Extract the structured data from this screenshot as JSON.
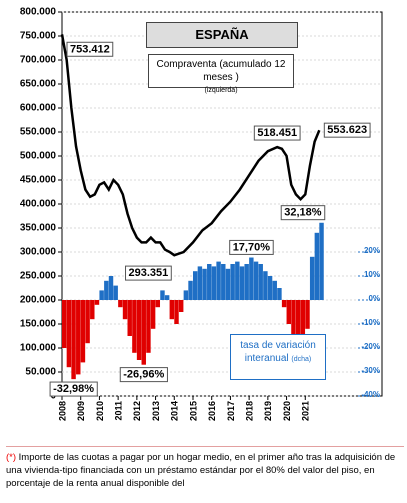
{
  "chart_data": {
    "type": "line_bar",
    "title": "ESPAÑA",
    "xlim": [
      2008,
      2025.1
    ],
    "xticks": [
      2008,
      2009,
      2010,
      2011,
      2012,
      2013,
      2014,
      2015,
      2016,
      2017,
      2018,
      2019,
      2020,
      2021
    ],
    "ylim": [
      0,
      800000
    ],
    "yticks": [
      {
        "value": 0,
        "label": "0"
      },
      {
        "value": 50000,
        "label": "50.000"
      },
      {
        "value": 100000,
        "label": "100.000"
      },
      {
        "value": 150000,
        "label": "150.000"
      },
      {
        "value": 200000,
        "label": "200.000"
      },
      {
        "value": 250000,
        "label": "250.000"
      },
      {
        "value": 300000,
        "label": "300.000"
      },
      {
        "value": 350000,
        "label": "350.000"
      },
      {
        "value": 400000,
        "label": "400.000"
      },
      {
        "value": 450000,
        "label": "450.000"
      },
      {
        "value": 500000,
        "label": "500.000"
      },
      {
        "value": 550000,
        "label": "550.000"
      },
      {
        "value": 600000,
        "label": "600.000"
      },
      {
        "value": 650000,
        "label": "650.000"
      },
      {
        "value": 700000,
        "label": "700.000"
      },
      {
        "value": 750000,
        "label": "750.000"
      },
      {
        "value": 800000,
        "label": "800.000"
      }
    ],
    "y2lim": [
      -40,
      120
    ],
    "y2ticks": [
      {
        "value": -40,
        "label": "-40%"
      },
      {
        "value": -30,
        "label": "-30%"
      },
      {
        "value": -20,
        "label": "-20%"
      },
      {
        "value": -10,
        "label": "-10%"
      },
      {
        "value": 0,
        "label": "0%"
      },
      {
        "value": 10,
        "label": "10%"
      },
      {
        "value": 20,
        "label": "20%"
      }
    ],
    "grid": true,
    "series": [
      {
        "name": "Compraventa  (acumulado 12 meses )",
        "legend_note": "(izquierda)",
        "type": "line",
        "color": "#000000",
        "x": [
          2008,
          2008.25,
          2008.5,
          2008.75,
          2009,
          2009.25,
          2009.5,
          2009.75,
          2010,
          2010.25,
          2010.5,
          2010.75,
          2011,
          2011.25,
          2011.5,
          2011.75,
          2012,
          2012.25,
          2012.5,
          2012.75,
          2013,
          2013.25,
          2013.5,
          2013.75,
          2014,
          2014.5,
          2015,
          2015.5,
          2016,
          2016.5,
          2017,
          2017.5,
          2018,
          2018.5,
          2019,
          2019.5,
          2019.75,
          2020,
          2020.25,
          2020.5,
          2020.75,
          2021,
          2021.25,
          2021.5,
          2021.75
        ],
        "values": [
          753412,
          700000,
          600000,
          520000,
          470000,
          430000,
          415000,
          420000,
          440000,
          445000,
          430000,
          450000,
          440000,
          420000,
          380000,
          350000,
          330000,
          320000,
          320000,
          330000,
          320000,
          320000,
          305000,
          300000,
          293351,
          300000,
          320000,
          345000,
          360000,
          385000,
          405000,
          430000,
          460000,
          490000,
          510000,
          518451,
          515000,
          500000,
          440000,
          420000,
          410000,
          420000,
          480000,
          530000,
          553623
        ],
        "value_labels": [
          "753.412",
          null,
          null,
          null,
          null,
          null,
          null,
          null,
          null,
          null,
          null,
          null,
          null,
          null,
          null,
          null,
          null,
          null,
          null,
          null,
          null,
          null,
          null,
          null,
          "293.351",
          null,
          null,
          null,
          null,
          null,
          null,
          null,
          null,
          null,
          null,
          "518.451",
          null,
          null,
          null,
          null,
          null,
          null,
          null,
          null,
          "553.623"
        ]
      },
      {
        "name": "tasa de variación interanual",
        "legend_note": "(dcha)",
        "type": "bar",
        "axis": "y2",
        "positive_color": "#1f6fc5",
        "negative_color": "#e00000",
        "x": [
          2008,
          2008.25,
          2008.5,
          2008.75,
          2009,
          2009.25,
          2009.5,
          2009.75,
          2010,
          2010.25,
          2010.5,
          2010.75,
          2011,
          2011.25,
          2011.5,
          2011.75,
          2012,
          2012.25,
          2012.5,
          2012.75,
          2013,
          2013.25,
          2013.5,
          2013.75,
          2014,
          2014.25,
          2014.5,
          2014.75,
          2015,
          2015.25,
          2015.5,
          2015.75,
          2016,
          2016.25,
          2016.5,
          2016.75,
          2017,
          2017.25,
          2017.5,
          2017.75,
          2018,
          2018.25,
          2018.5,
          2018.75,
          2019,
          2019.25,
          2019.5,
          2019.75,
          2020,
          2020.25,
          2020.5,
          2020.75,
          2021,
          2021.25,
          2021.5,
          2021.75
        ],
        "values": [
          -20,
          -28,
          -32.98,
          -31,
          -26,
          -18,
          -8,
          -2,
          4,
          8,
          10,
          6,
          -3,
          -8,
          -15,
          -22,
          -25,
          -26.96,
          -22,
          -12,
          -3,
          4,
          2,
          -8,
          -10,
          -5,
          4,
          8,
          12,
          14,
          13,
          15,
          14,
          16,
          15,
          13,
          15,
          16,
          14,
          15,
          17.7,
          16,
          15,
          12,
          10,
          8,
          5,
          -3,
          -10,
          -18,
          -20,
          -19,
          -12,
          18,
          28,
          32.18
        ],
        "value_labels": [
          null,
          null,
          "-32,98%",
          null,
          null,
          null,
          null,
          null,
          null,
          null,
          null,
          null,
          null,
          null,
          null,
          null,
          null,
          "-26,96%",
          null,
          null,
          null,
          null,
          null,
          null,
          null,
          null,
          null,
          null,
          null,
          null,
          null,
          null,
          null,
          null,
          null,
          null,
          null,
          null,
          null,
          null,
          "17,70%",
          null,
          null,
          null,
          null,
          null,
          null,
          null,
          null,
          null,
          null,
          null,
          null,
          null,
          null,
          "32,18%"
        ]
      }
    ],
    "footnote_marker": "(*)",
    "footnote": "Importe de las cuotas a pagar por un hogar medio, en el primer año tras la adquisición de una vivienda-tipo financiada con un préstamo estándar por el 80% del valor del piso, en porcentaje de la renta anual disponible del"
  }
}
